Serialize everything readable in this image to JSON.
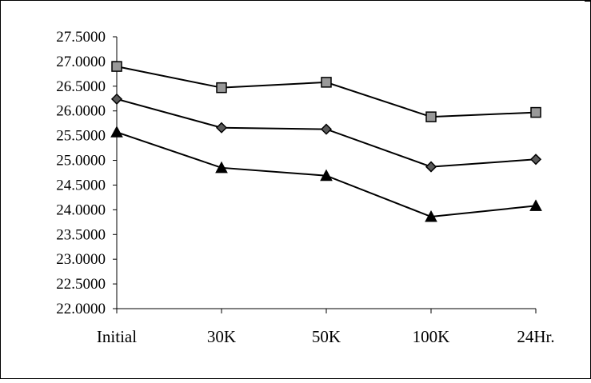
{
  "chart_data": {
    "type": "line",
    "title": "",
    "xlabel": "",
    "ylabel": "",
    "categories": [
      "Initial",
      "30K",
      "50K",
      "100K",
      "24Hr."
    ],
    "ylim": [
      22.0,
      27.5
    ],
    "yticks": [
      22.0,
      22.5,
      23.0,
      23.5,
      24.0,
      24.5,
      25.0,
      25.5,
      26.0,
      26.5,
      27.0,
      27.5
    ],
    "ytick_labels": [
      "22.0000",
      "22.5000",
      "23.0000",
      "23.5000",
      "24.0000",
      "24.5000",
      "25.0000",
      "25.5000",
      "26.0000",
      "26.5000",
      "27.0000",
      "27.5000"
    ],
    "grid": false,
    "legend": "none",
    "series": [
      {
        "marker": "square",
        "color": "#999999",
        "values": [
          26.9,
          26.47,
          26.58,
          25.88,
          25.97
        ]
      },
      {
        "marker": "diamond",
        "color": "#595959",
        "values": [
          26.24,
          25.66,
          25.63,
          24.87,
          25.02
        ]
      },
      {
        "marker": "triangle",
        "color": "#000000",
        "values": [
          25.57,
          24.85,
          24.69,
          23.86,
          24.08
        ]
      }
    ]
  }
}
